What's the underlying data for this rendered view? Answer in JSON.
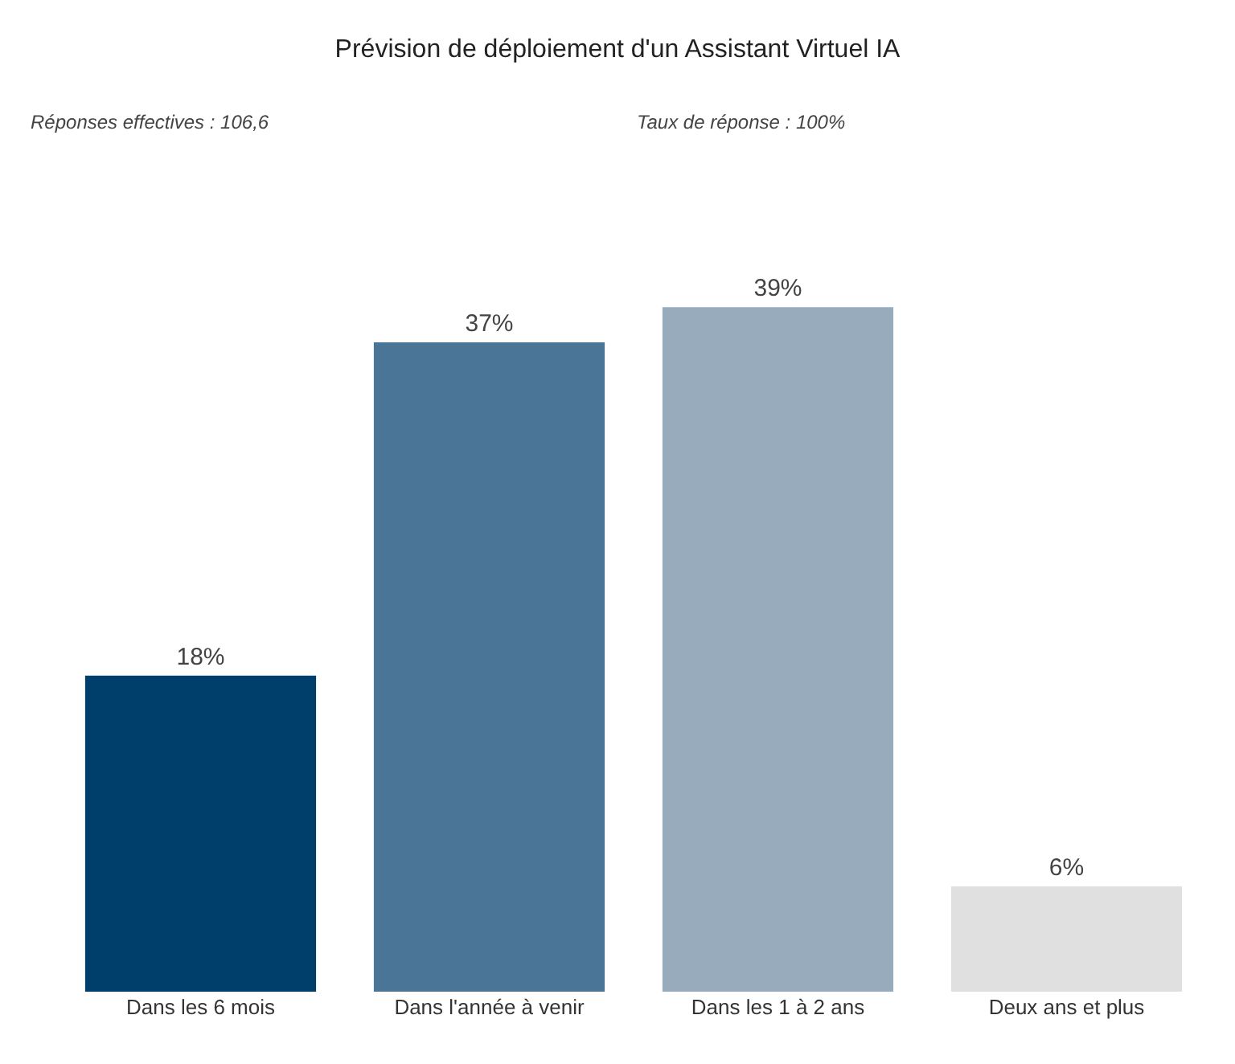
{
  "chart_data": {
    "type": "bar",
    "title": "Prévision de déploiement d'un Assistant Virtuel IA",
    "annotations": [
      "Réponses effectives : 106,6",
      "Taux de réponse : 100%"
    ],
    "categories": [
      "Dans les 6 mois",
      "Dans l'année à venir",
      "Dans les 1 à 2 ans",
      "Deux ans et plus"
    ],
    "values": [
      18,
      37,
      39,
      6
    ],
    "colors": [
      "#003f6b",
      "#4a7596",
      "#97abbd",
      "#e0e0e0"
    ],
    "value_labels": [
      "18%",
      "37%",
      "39%",
      "6%"
    ]
  }
}
